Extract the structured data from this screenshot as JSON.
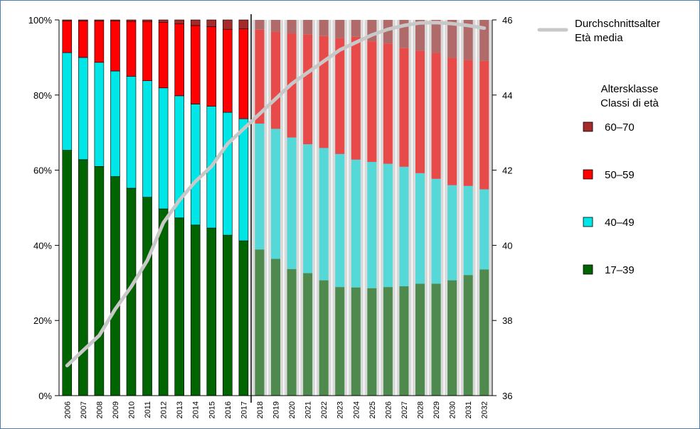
{
  "chart_data": {
    "type": "bar",
    "stacked": true,
    "categories": [
      "2006",
      "2007",
      "2008",
      "2009",
      "2010",
      "2011",
      "2012",
      "2013",
      "2014",
      "2015",
      "2016",
      "2017",
      "2018",
      "2019",
      "2020",
      "2021",
      "2022",
      "2023",
      "2024",
      "2025",
      "2026",
      "2027",
      "2028",
      "2029",
      "2030",
      "2031",
      "2032"
    ],
    "projection_start": "2018",
    "series": [
      {
        "name": "17–39",
        "color": "#006400",
        "projection_color": "#4e8a4e",
        "values": [
          65.3,
          62.8,
          61.0,
          58.3,
          55.2,
          52.8,
          49.7,
          47.3,
          45.4,
          44.6,
          42.7,
          41.2,
          38.9,
          36.4,
          33.7,
          32.6,
          30.7,
          28.9,
          28.8,
          28.6,
          28.9,
          29.1,
          29.8,
          29.8,
          30.7,
          32.1,
          33.6
        ]
      },
      {
        "name": "40–49",
        "color": "#00e5e5",
        "projection_color": "#55d8d8",
        "values": [
          26.0,
          27.2,
          27.7,
          28.1,
          29.8,
          31.0,
          32.2,
          32.5,
          32.2,
          32.4,
          32.7,
          32.5,
          33.5,
          34.6,
          35.0,
          34.3,
          35.2,
          35.4,
          34.0,
          33.6,
          32.8,
          31.8,
          29.4,
          27.9,
          25.3,
          23.7,
          21.3
        ]
      },
      {
        "name": "50–59",
        "color": "#ff0000",
        "projection_color": "#e84a4a",
        "values": [
          8.4,
          9.7,
          11.0,
          13.3,
          14.6,
          15.8,
          17.4,
          19.2,
          20.9,
          21.2,
          22.1,
          23.9,
          25.0,
          25.8,
          27.7,
          29.2,
          29.8,
          30.8,
          32.7,
          32.1,
          32.0,
          31.6,
          32.6,
          33.5,
          33.9,
          33.5,
          34.2
        ]
      },
      {
        "name": "60–70",
        "color": "#a52a2a",
        "projection_color": "#b06a6a",
        "values": [
          0.3,
          0.3,
          0.3,
          0.3,
          0.4,
          0.4,
          0.7,
          1.0,
          1.5,
          1.8,
          2.5,
          2.4,
          2.6,
          3.2,
          3.6,
          3.9,
          4.3,
          4.9,
          4.5,
          5.7,
          6.3,
          7.5,
          8.2,
          8.8,
          10.1,
          10.7,
          10.9
        ]
      }
    ],
    "line": {
      "name": "Durchschnittsalter\nEtà media",
      "axis": "right",
      "color": "#c8c8c8",
      "values": [
        36.8,
        37.2,
        37.6,
        38.3,
        38.9,
        39.6,
        40.6,
        41.2,
        41.7,
        42.1,
        42.7,
        43.1,
        43.5,
        43.9,
        44.3,
        44.6,
        44.9,
        45.2,
        45.4,
        45.6,
        45.75,
        45.85,
        45.92,
        45.93,
        45.9,
        45.85,
        45.78
      ]
    },
    "y_left": {
      "range": [
        0,
        100
      ],
      "ticks": [
        "0%",
        "20%",
        "40%",
        "60%",
        "80%",
        "100%"
      ]
    },
    "y_right": {
      "range": [
        36,
        46
      ],
      "ticks": [
        "36",
        "38",
        "40",
        "42",
        "44",
        "46"
      ]
    },
    "xlabel": "",
    "ylabel": "",
    "grid": false
  },
  "legend": {
    "line_label_line1": "Durchschnittsalter",
    "line_label_line2": "Età media",
    "title_line1": "Altersklasse",
    "title_line2": "Classi di età",
    "items": [
      "60–70",
      "50–59",
      "40–49",
      "17–39"
    ]
  }
}
